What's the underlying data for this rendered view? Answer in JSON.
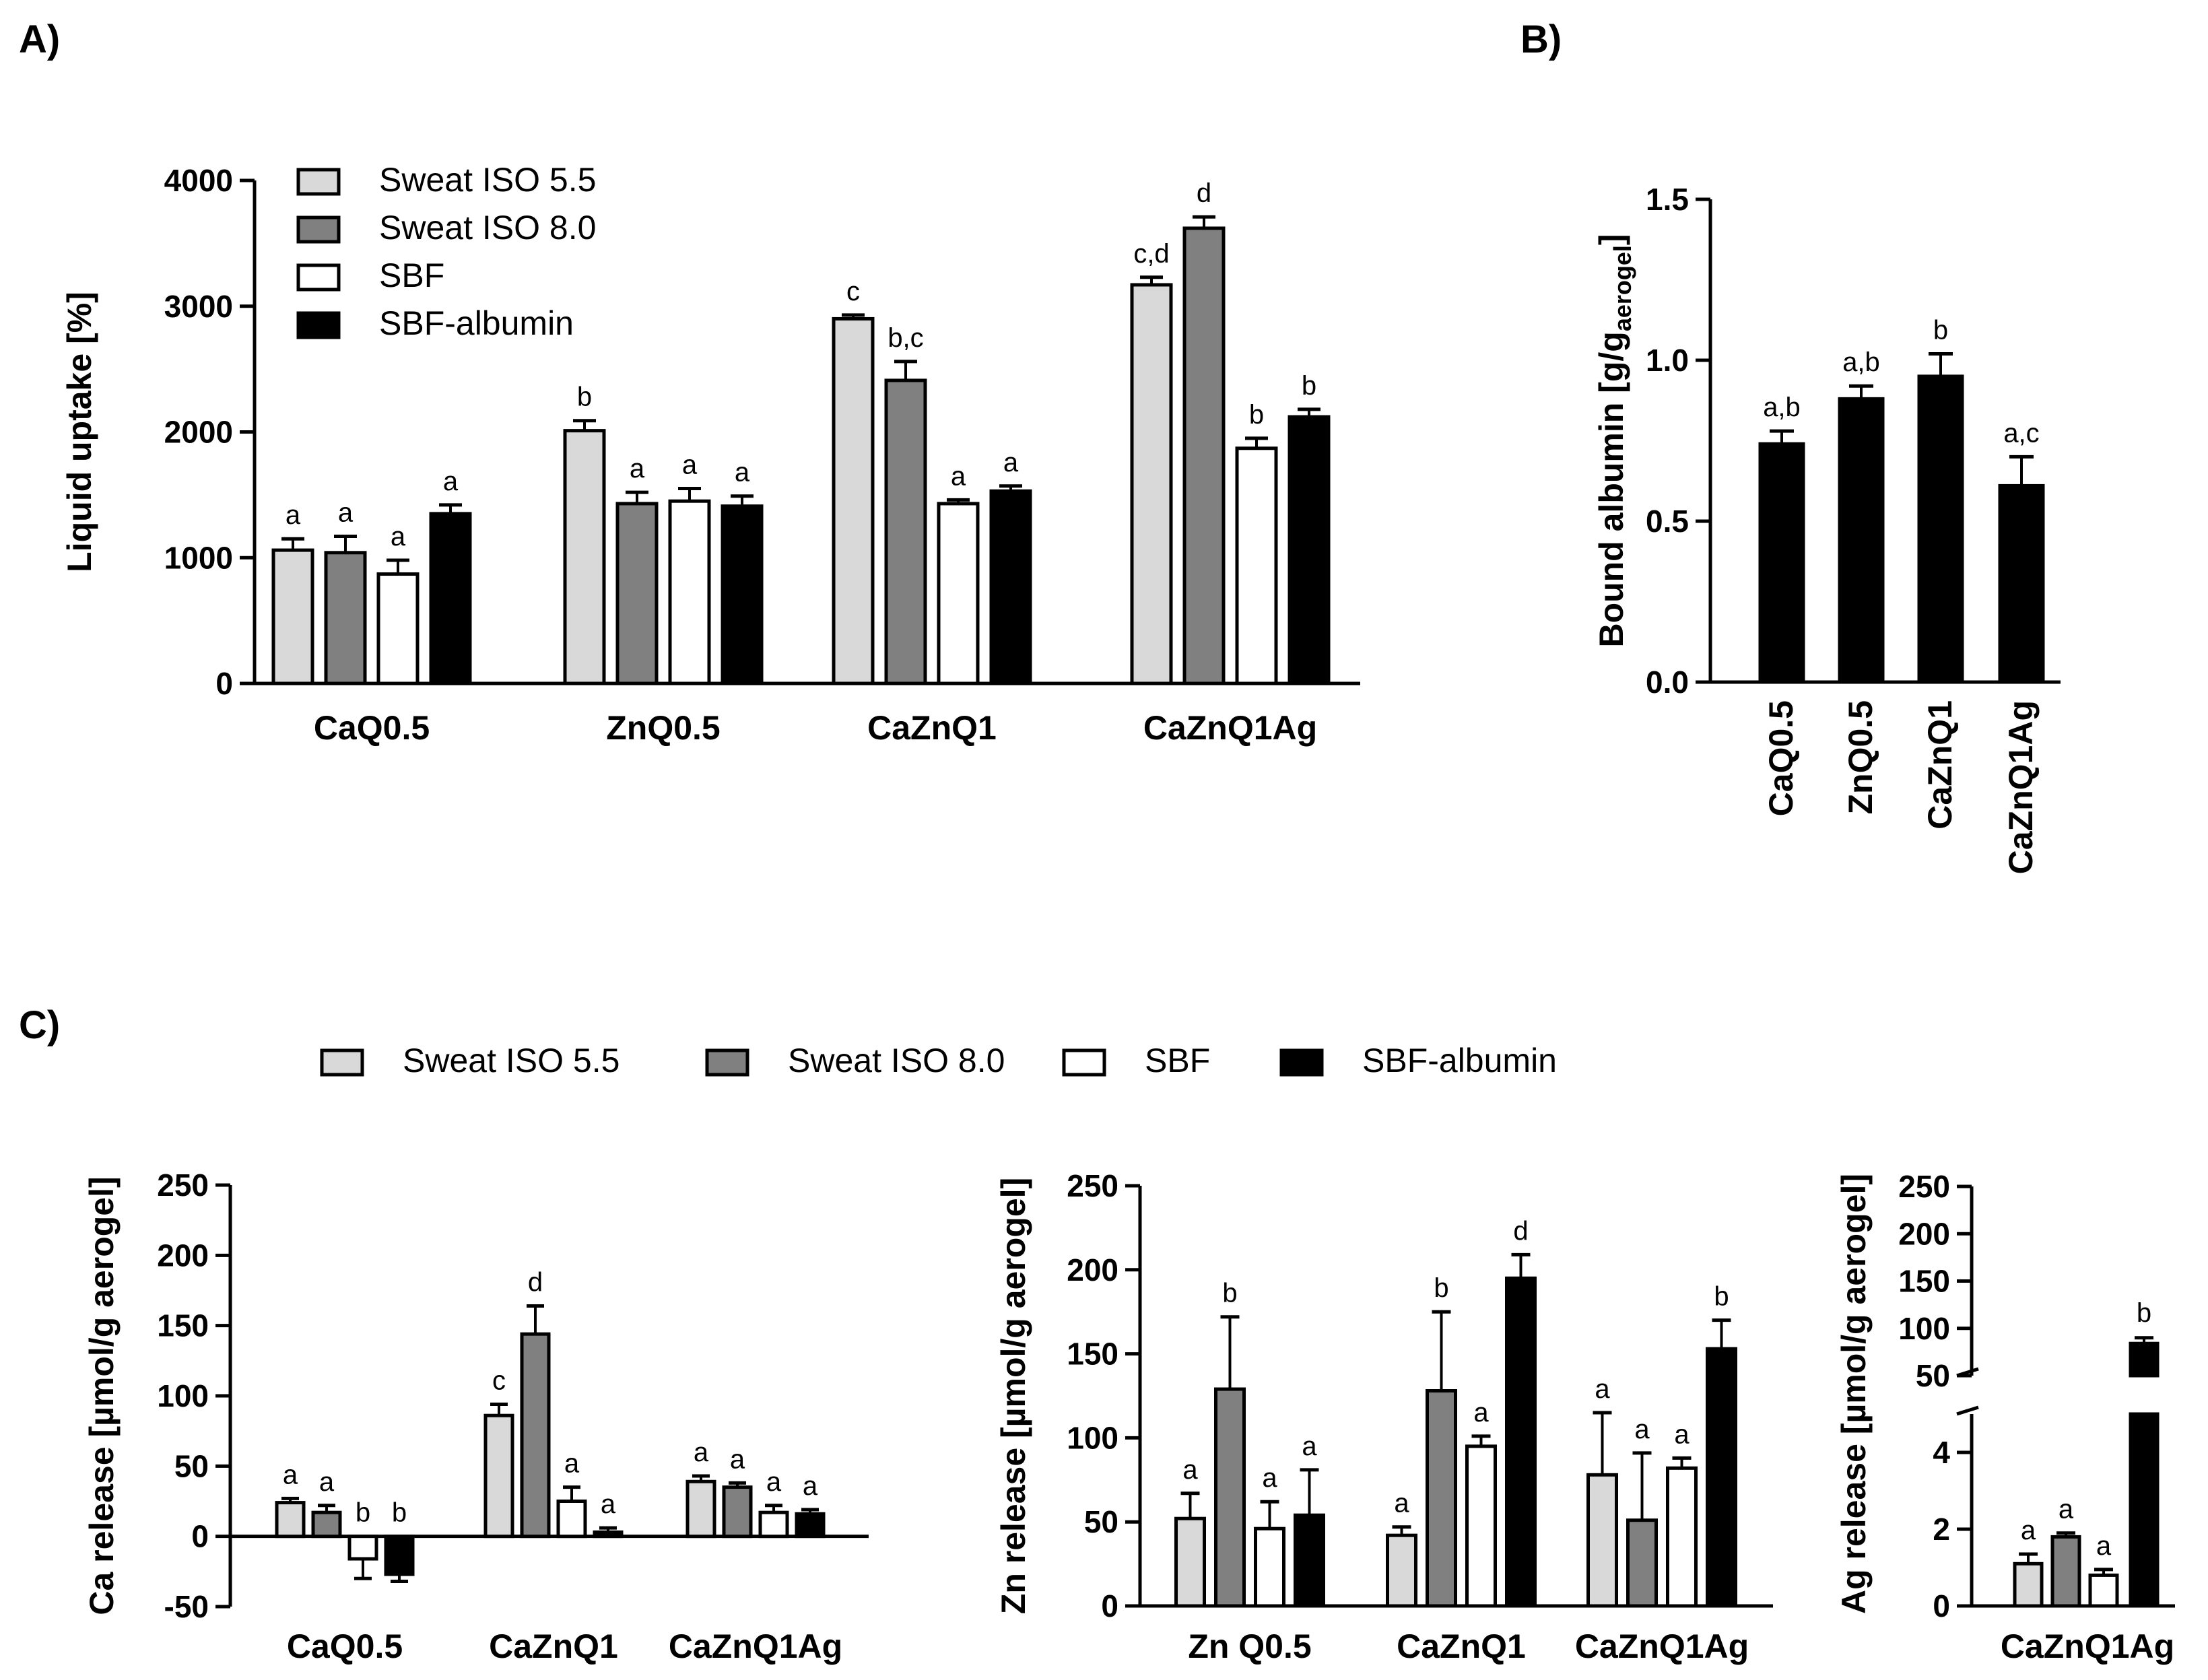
{
  "colors": {
    "Sweat ISO 5.5": "#d9d9d9",
    "Sweat ISO 8.0": "#808080",
    "SBF": "#ffffff",
    "SBF-albumin": "#000000",
    "axis": "#000000"
  },
  "legend": {
    "entries": [
      "Sweat ISO 5.5",
      "Sweat ISO 8.0",
      "SBF",
      "SBF-albumin"
    ],
    "placement_A": "top-left",
    "placement_C": "top-center"
  },
  "chart_data": [
    {
      "panel_label": "A)",
      "type": "bar",
      "ylabel": "Liquid uptake [%]",
      "ylim": [
        0,
        4000
      ],
      "yticks": [
        0,
        1000,
        2000,
        3000,
        4000
      ],
      "categories": [
        "CaQ0.5",
        "ZnQ0.5",
        "CaZnQ1",
        "CaZnQ1Ag"
      ],
      "series": [
        {
          "name": "Sweat ISO 5.5",
          "values": [
            1060,
            2010,
            2900,
            3170
          ],
          "errors": [
            90,
            80,
            30,
            60
          ],
          "labels": [
            "a",
            "b",
            "c",
            "c,d"
          ]
        },
        {
          "name": "Sweat ISO 8.0",
          "values": [
            1040,
            1430,
            2410,
            3620
          ],
          "errors": [
            130,
            90,
            150,
            90
          ],
          "labels": [
            "a",
            "a",
            "b,c",
            "d"
          ]
        },
        {
          "name": "SBF",
          "values": [
            870,
            1450,
            1430,
            1870
          ],
          "errors": [
            110,
            100,
            30,
            80
          ],
          "labels": [
            "a",
            "a",
            "a",
            "b"
          ]
        },
        {
          "name": "SBF-albumin",
          "values": [
            1350,
            1410,
            1530,
            2120
          ],
          "errors": [
            70,
            80,
            40,
            60
          ],
          "labels": [
            "a",
            "a",
            "a",
            "b"
          ]
        }
      ]
    },
    {
      "panel_label": "B)",
      "type": "bar",
      "ylabel_main": "Bound albumin [g/g",
      "ylabel_sub": "aerogel",
      "ylabel_end": "]",
      "ylim": [
        0,
        1.5
      ],
      "yticks": [
        "0.0",
        "0.5",
        "1.0",
        "1.5"
      ],
      "categories": [
        "CaQ0.5",
        "ZnQ0.5",
        "CaZnQ1",
        "CaZnQ1Ag"
      ],
      "values": [
        0.74,
        0.88,
        0.95,
        0.61
      ],
      "errors": [
        0.04,
        0.04,
        0.07,
        0.09
      ],
      "labels": [
        "a,b",
        "a,b",
        "b",
        "a,c"
      ]
    },
    {
      "panel_label": "C)",
      "type": "bar",
      "ylabel": "Ca release [µmol/g aerogel]",
      "ylim": [
        -50,
        250
      ],
      "yticks": [
        -50,
        0,
        50,
        100,
        150,
        200,
        250
      ],
      "categories": [
        "CaQ0.5",
        "CaZnQ1",
        "CaZnQ1Ag"
      ],
      "series": [
        {
          "name": "Sweat ISO 5.5",
          "values": [
            24,
            86,
            39
          ],
          "errors": [
            3,
            8,
            4
          ],
          "labels": [
            "a",
            "c",
            "a"
          ]
        },
        {
          "name": "Sweat ISO 8.0",
          "values": [
            17,
            144,
            35
          ],
          "errors": [
            5,
            20,
            3
          ],
          "labels": [
            "a",
            "d",
            "a"
          ]
        },
        {
          "name": "SBF",
          "values": [
            -16,
            25,
            17
          ],
          "errors": [
            14,
            10,
            5
          ],
          "labels": [
            "b",
            "a",
            "a"
          ]
        },
        {
          "name": "SBF-albumin",
          "values": [
            -27,
            3,
            16
          ],
          "errors": [
            5,
            3,
            3
          ],
          "labels": [
            "b",
            "a",
            "a"
          ]
        }
      ]
    },
    {
      "type": "bar",
      "ylabel": "Zn release [µmol/g aerogel]",
      "ylim": [
        0,
        250
      ],
      "yticks": [
        0,
        50,
        100,
        150,
        200,
        250
      ],
      "categories": [
        "Zn Q0.5",
        "CaZnQ1",
        "CaZnQ1Ag"
      ],
      "series": [
        {
          "name": "Sweat ISO 5.5",
          "values": [
            52,
            42,
            78
          ],
          "errors": [
            15,
            5,
            37
          ],
          "labels": [
            "a",
            "a",
            "a"
          ]
        },
        {
          "name": "Sweat ISO 8.0",
          "values": [
            129,
            128,
            51
          ],
          "errors": [
            43,
            47,
            40
          ],
          "labels": [
            "b",
            "b",
            "a"
          ]
        },
        {
          "name": "SBF",
          "values": [
            46,
            95,
            82
          ],
          "errors": [
            16,
            6,
            6
          ],
          "labels": [
            "a",
            "a",
            "a"
          ]
        },
        {
          "name": "SBF-albumin",
          "values": [
            54,
            195,
            153
          ],
          "errors": [
            27,
            14,
            17
          ],
          "labels": [
            "a",
            "d",
            "b"
          ]
        }
      ]
    },
    {
      "type": "bar",
      "ylabel": "Ag release [µmol/g aerogel]",
      "broken_axis": true,
      "lower_ylim": [
        0,
        5
      ],
      "lower_yticks": [
        0,
        2,
        4
      ],
      "upper_ylim": [
        50,
        250
      ],
      "upper_yticks": [
        50,
        100,
        150,
        200,
        250
      ],
      "categories": [
        "CaZnQ1Ag"
      ],
      "series": [
        {
          "name": "Sweat ISO 5.5",
          "values": [
            1.1
          ],
          "errors": [
            0.25
          ],
          "labels": [
            "a"
          ]
        },
        {
          "name": "Sweat ISO 8.0",
          "values": [
            1.8
          ],
          "errors": [
            0.1
          ],
          "labels": [
            "a"
          ]
        },
        {
          "name": "SBF",
          "values": [
            0.8
          ],
          "errors": [
            0.15
          ],
          "labels": [
            "a"
          ]
        },
        {
          "name": "SBF-albumin",
          "values": [
            84
          ],
          "errors": [
            6
          ],
          "labels": [
            "b"
          ]
        }
      ]
    }
  ]
}
